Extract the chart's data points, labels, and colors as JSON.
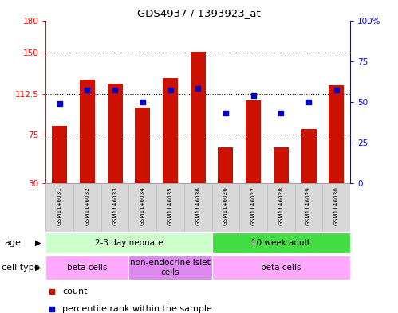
{
  "title": "GDS4937 / 1393923_at",
  "samples": [
    "GSM1146031",
    "GSM1146032",
    "GSM1146033",
    "GSM1146034",
    "GSM1146035",
    "GSM1146036",
    "GSM1146026",
    "GSM1146027",
    "GSM1146028",
    "GSM1146029",
    "GSM1146030"
  ],
  "counts": [
    83,
    125,
    122,
    100,
    127,
    151,
    63,
    106,
    63,
    80,
    120
  ],
  "percentiles": [
    49,
    57,
    57,
    50,
    57,
    58,
    43,
    54,
    43,
    50,
    57
  ],
  "ylim_left": [
    30,
    180
  ],
  "ylim_right": [
    0,
    100
  ],
  "yticks_left": [
    30,
    75,
    112.5,
    150,
    180
  ],
  "ytick_labels_left": [
    "30",
    "75",
    "112.5",
    "150",
    "180"
  ],
  "yticks_right": [
    0,
    25,
    50,
    75,
    100
  ],
  "ytick_labels_right": [
    "0",
    "25",
    "50",
    "75",
    "100%"
  ],
  "bar_color": "#cc1100",
  "dot_color": "#0000cc",
  "grid_lines": [
    75,
    112.5,
    150
  ],
  "age_groups": [
    {
      "label": "2-3 day neonate",
      "start": 0,
      "end": 6,
      "color": "#ccffcc"
    },
    {
      "label": "10 week adult",
      "start": 6,
      "end": 11,
      "color": "#44dd44"
    }
  ],
  "cell_type_groups": [
    {
      "label": "beta cells",
      "start": 0,
      "end": 3,
      "color": "#ffaaff"
    },
    {
      "label": "non-endocrine islet\ncells",
      "start": 3,
      "end": 6,
      "color": "#dd88ee"
    },
    {
      "label": "beta cells",
      "start": 6,
      "end": 11,
      "color": "#ffaaff"
    }
  ],
  "legend_items": [
    {
      "color": "#cc1100",
      "label": "count"
    },
    {
      "color": "#0000cc",
      "label": "percentile rank within the sample"
    }
  ],
  "sample_box_color": "#d8d8d8",
  "sample_box_edge": "#bbbbbb"
}
